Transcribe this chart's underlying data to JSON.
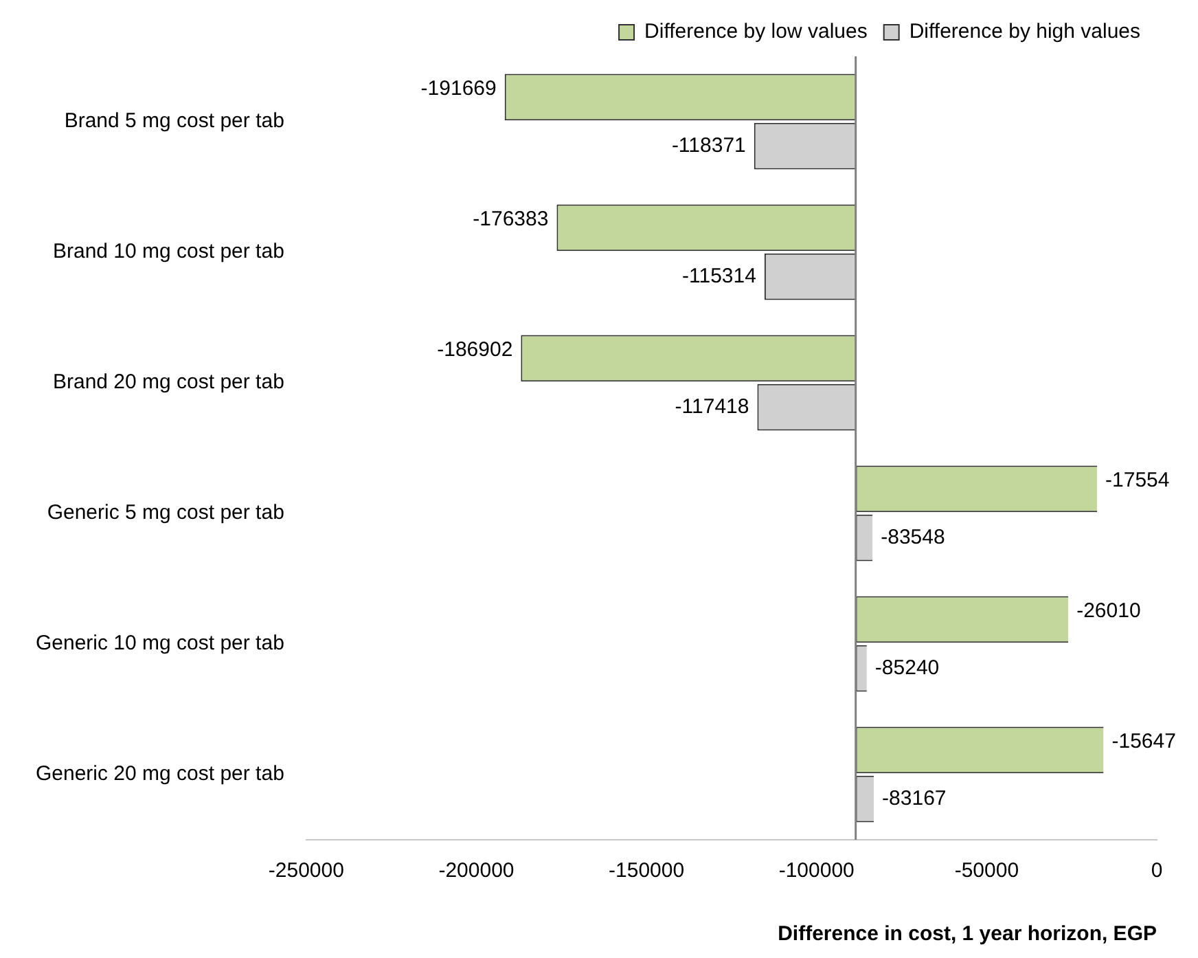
{
  "chart_data": {
    "type": "bar",
    "orientation": "horizontal",
    "xlabel": "Difference in cost, 1 year horizon, EGP",
    "categories": [
      "Brand 5 mg cost per tab",
      "Brand 10 mg cost per tab",
      "Brand 20 mg cost per tab",
      "Generic 5 mg cost per tab",
      "Generic 10 mg cost per tab",
      "Generic 20 mg cost per tab"
    ],
    "series": [
      {
        "name": "Difference by low values",
        "color": "#c3d69b",
        "base": [
          -88500,
          -88500,
          -88500,
          -88500,
          -88500,
          -88500
        ],
        "values": [
          -103169,
          -87883,
          -98402,
          70946,
          62490,
          72853
        ]
      },
      {
        "name": "Difference by high values",
        "color": "#d0d0d0",
        "base": [
          -88500,
          -88500,
          -88500,
          -88500,
          -88500,
          -88500
        ],
        "values": [
          -29871,
          -26814,
          -28918,
          4952,
          3260,
          5333
        ]
      }
    ],
    "annotations": [
      {
        "text": "-191669",
        "x": -191669,
        "y": "Brand 5 mg cost per tab"
      },
      {
        "text": "-118371",
        "x": -118371,
        "y": "Brand 5 mg cost per tab"
      },
      {
        "text": "-176383",
        "x": -176383,
        "y": "Brand 10 mg cost per tab"
      },
      {
        "text": "-115314",
        "x": -115314,
        "y": "Brand 10 mg cost per tab"
      },
      {
        "text": "-186902",
        "x": -186902,
        "y": "Brand 20 mg cost per tab"
      },
      {
        "text": "-117418",
        "x": -117418,
        "y": "Brand 20 mg cost per tab"
      },
      {
        "text": "-17554",
        "x": -17554,
        "y": "Generic 5 mg cost per tab"
      },
      {
        "text": "-83548",
        "x": -83548,
        "y": "Generic 5 mg cost per tab"
      },
      {
        "text": "-26010",
        "x": -26010,
        "y": "Generic 10 mg cost per tab"
      },
      {
        "text": "-85240",
        "x": -85240,
        "y": "Generic 10 mg cost per tab"
      },
      {
        "text": "-15647",
        "x": -15647,
        "y": "Generic 20 mg cost per tab"
      },
      {
        "text": "-83167",
        "x": -83167,
        "y": "Generic 20 mg cost per tab"
      }
    ],
    "xlim": [
      -250000,
      0
    ],
    "xticks": [
      -250000,
      -200000,
      -150000,
      -100000,
      -50000,
      0
    ],
    "ref_lines": [
      {
        "axis": "x",
        "value": -88500,
        "color": "#808080"
      }
    ],
    "legend": "top right",
    "grid": false
  }
}
